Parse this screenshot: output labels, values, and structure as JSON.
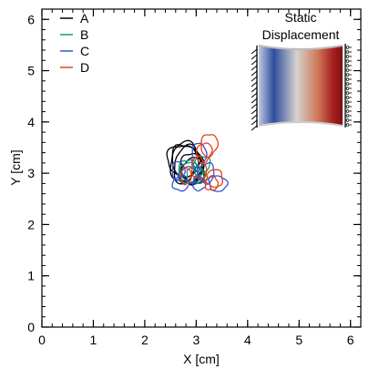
{
  "chart_data": {
    "type": "line",
    "title": "",
    "xlabel": "X [cm]",
    "ylabel": "Y [cm]",
    "xlim": [
      0,
      6.2
    ],
    "ylim": [
      0,
      6.2
    ],
    "xticks": [
      0,
      1,
      2,
      3,
      4,
      5,
      6
    ],
    "yticks": [
      0,
      1,
      2,
      3,
      4,
      5,
      6
    ],
    "xtick_labels": [
      "0",
      "1",
      "2",
      "3",
      "4",
      "5",
      "6"
    ],
    "ytick_labels": [
      "0",
      "1",
      "2",
      "3",
      "4",
      "5",
      "6"
    ],
    "minor_tick_step": 0.2,
    "grid": false,
    "legend_position": "top-left",
    "series": [
      {
        "name": "A",
        "color": "#000000",
        "loops": [
          {
            "cx": 2.8,
            "cy": 3.2,
            "rx": 0.3,
            "ry": 0.4,
            "rot": 0
          },
          {
            "cx": 2.85,
            "cy": 3.15,
            "rx": 0.28,
            "ry": 0.38,
            "rot": 10
          },
          {
            "cx": 2.78,
            "cy": 3.22,
            "rx": 0.25,
            "ry": 0.35,
            "rot": -10
          },
          {
            "cx": 2.9,
            "cy": 3.1,
            "rx": 0.2,
            "ry": 0.3,
            "rot": 0
          },
          {
            "cx": 2.75,
            "cy": 3.25,
            "rx": 0.32,
            "ry": 0.3,
            "rot": 20
          },
          {
            "cx": 2.95,
            "cy": 3.05,
            "rx": 0.22,
            "ry": 0.26,
            "rot": 5
          }
        ]
      },
      {
        "name": "B",
        "color": "#1a9a6c",
        "loops": [
          {
            "cx": 2.9,
            "cy": 3.0,
            "rx": 0.25,
            "ry": 0.2,
            "rot": 0
          },
          {
            "cx": 3.0,
            "cy": 2.95,
            "rx": 0.2,
            "ry": 0.15,
            "rot": 20
          },
          {
            "cx": 2.85,
            "cy": 3.05,
            "rx": 0.18,
            "ry": 0.22,
            "rot": -15
          },
          {
            "cx": 3.1,
            "cy": 3.15,
            "rx": 0.15,
            "ry": 0.2,
            "rot": 30
          }
        ]
      },
      {
        "name": "C",
        "color": "#2f55d4",
        "loops": [
          {
            "cx": 3.05,
            "cy": 3.35,
            "rx": 0.14,
            "ry": 0.24,
            "rot": 5
          },
          {
            "cx": 3.42,
            "cy": 2.8,
            "rx": 0.18,
            "ry": 0.15,
            "rot": 15
          },
          {
            "cx": 2.7,
            "cy": 2.8,
            "rx": 0.16,
            "ry": 0.14,
            "rot": -20
          },
          {
            "cx": 3.2,
            "cy": 3.0,
            "rx": 0.15,
            "ry": 0.2,
            "rot": 10
          },
          {
            "cx": 2.85,
            "cy": 2.95,
            "rx": 0.2,
            "ry": 0.16,
            "rot": 0
          },
          {
            "cx": 3.05,
            "cy": 2.8,
            "rx": 0.12,
            "ry": 0.14,
            "rot": -10
          },
          {
            "cx": 2.65,
            "cy": 3.05,
            "rx": 0.12,
            "ry": 0.18,
            "rot": 0
          }
        ]
      },
      {
        "name": "D",
        "color": "#e8401c",
        "loops": [
          {
            "cx": 3.25,
            "cy": 3.55,
            "rx": 0.16,
            "ry": 0.22,
            "rot": 10
          },
          {
            "cx": 3.15,
            "cy": 3.4,
            "rx": 0.14,
            "ry": 0.2,
            "rot": 20
          },
          {
            "cx": 3.35,
            "cy": 2.9,
            "rx": 0.17,
            "ry": 0.17,
            "rot": 0
          },
          {
            "cx": 3.05,
            "cy": 3.1,
            "rx": 0.14,
            "ry": 0.22,
            "rot": -10
          },
          {
            "cx": 3.3,
            "cy": 2.8,
            "rx": 0.12,
            "ry": 0.14,
            "rot": 15
          },
          {
            "cx": 2.8,
            "cy": 2.95,
            "rx": 0.1,
            "ry": 0.16,
            "rot": 0
          }
        ]
      }
    ],
    "inset": {
      "title_line1": "Static",
      "title_line2": "Displacement",
      "colormap": [
        "#2a4aa0",
        "#6e8ed0",
        "#d8d2cc",
        "#d48a6a",
        "#b8322a",
        "#8a1010"
      ]
    }
  }
}
